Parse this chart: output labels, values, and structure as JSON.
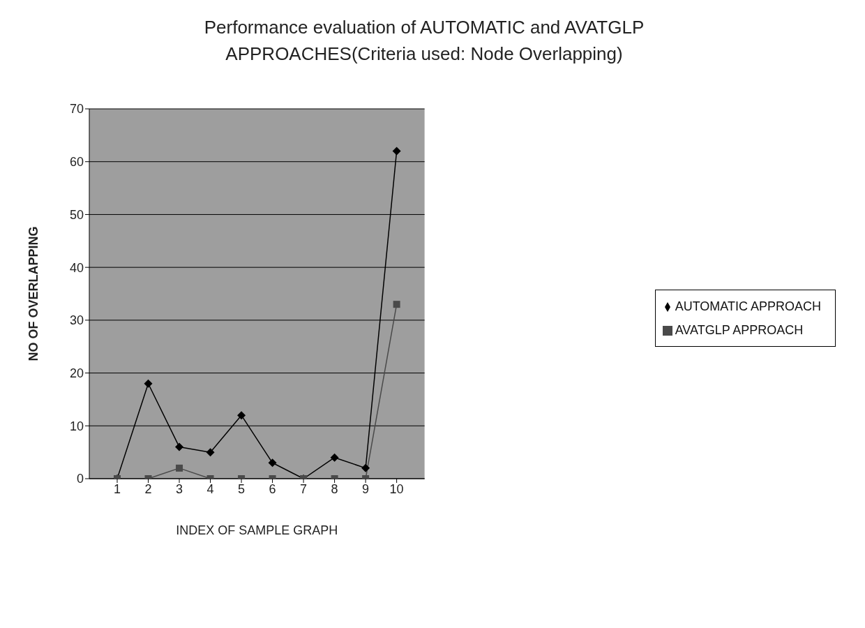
{
  "chart_data": {
    "type": "line",
    "title": "Performance evaluation of AUTOMATIC and AVATGLP APPROACHES(Criteria used:  Node Overlapping)",
    "xlabel": "INDEX OF SAMPLE GRAPH",
    "ylabel": "NO OF OVERLAPPING",
    "categories": [
      "1",
      "2",
      "3",
      "4",
      "5",
      "6",
      "7",
      "8",
      "9",
      "10"
    ],
    "series": [
      {
        "name": "AUTOMATIC APPROACH",
        "color": "#000000",
        "marker": "diamond",
        "values": [
          0,
          18,
          6,
          5,
          12,
          3,
          0,
          4,
          2,
          62
        ]
      },
      {
        "name": "AVATGLP APPROACH",
        "color": "#4a4a4a",
        "marker": "square",
        "values": [
          0,
          0,
          2,
          0,
          0,
          0,
          0,
          0,
          0,
          33
        ]
      }
    ],
    "ylim": [
      0,
      70
    ],
    "yticks": [
      0,
      10,
      20,
      30,
      40,
      50,
      60,
      70
    ],
    "grid": "y",
    "legend": "right",
    "line_style": "solid"
  }
}
